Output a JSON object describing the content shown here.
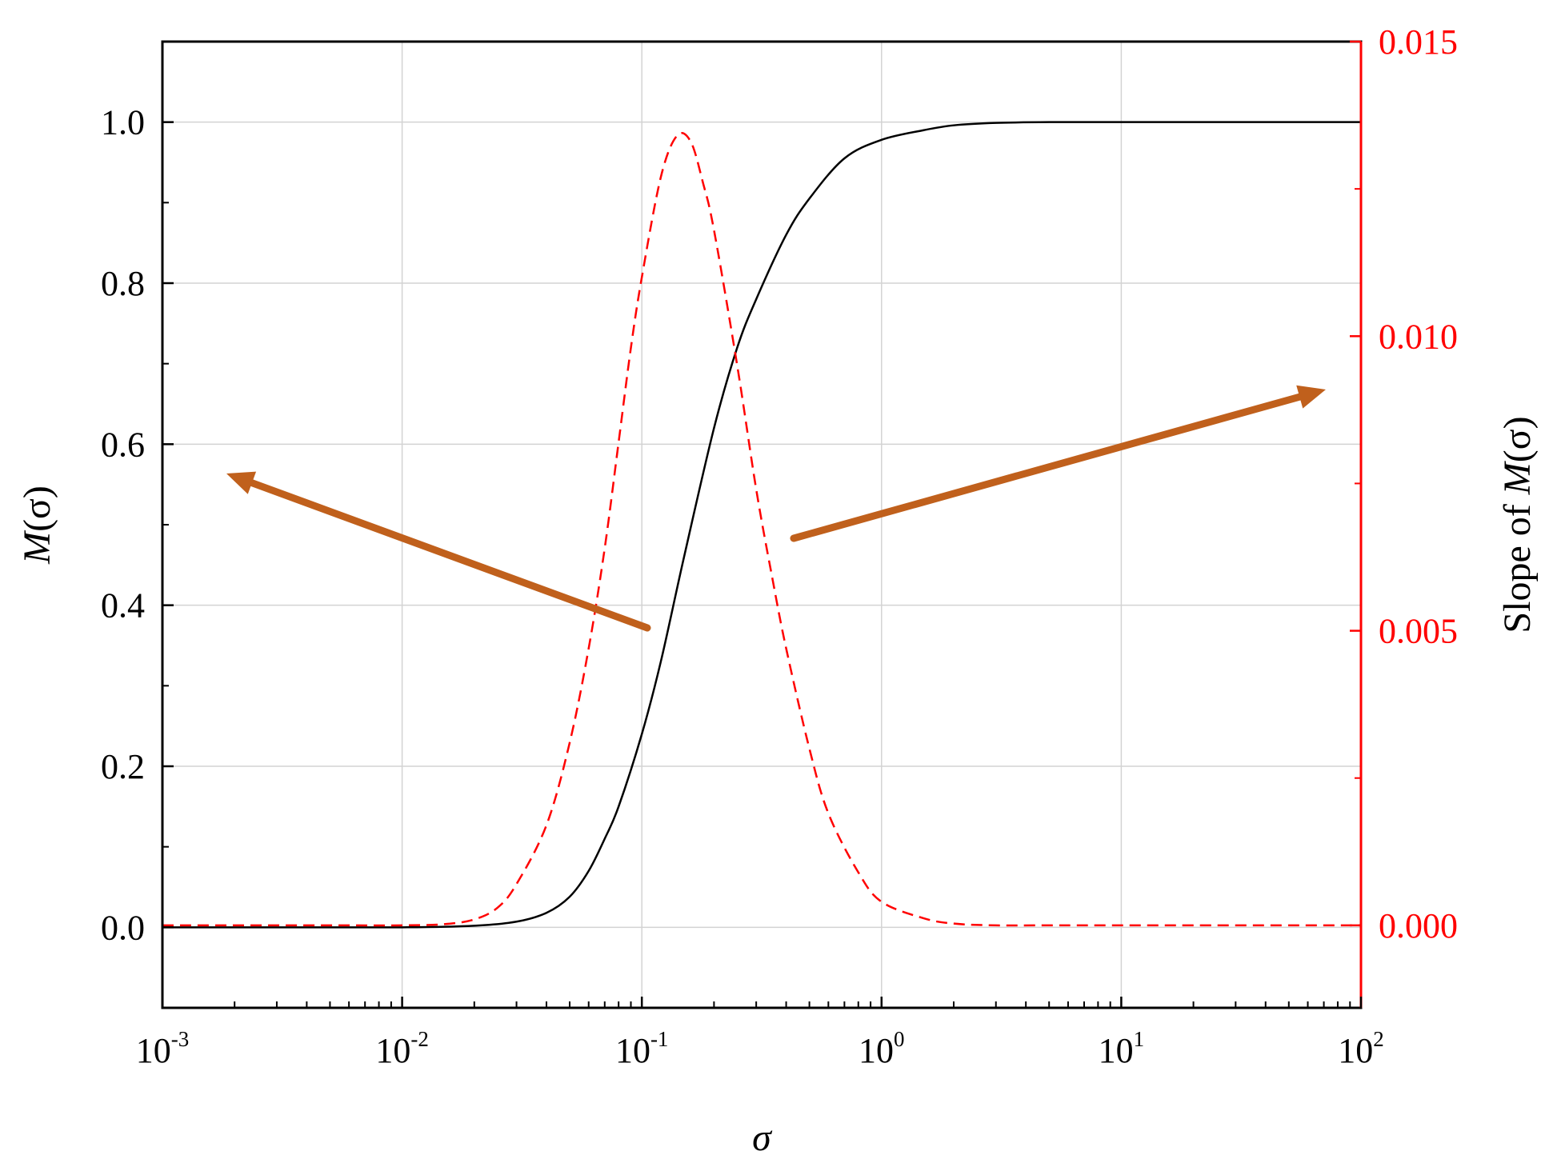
{
  "chart_data": {
    "type": "line",
    "title": "",
    "xlabel": "σ",
    "xscale": "log",
    "xlim": [
      0.001,
      100
    ],
    "x_ticks": [
      {
        "base": "10",
        "exp": "-3"
      },
      {
        "base": "10",
        "exp": "-2"
      },
      {
        "base": "10",
        "exp": "-1"
      },
      {
        "base": "10",
        "exp": "0"
      },
      {
        "base": "10",
        "exp": "1"
      },
      {
        "base": "10",
        "exp": "2"
      }
    ],
    "y_left": {
      "label_prefix": "M",
      "label_suffix": "(σ)",
      "ylim": [
        -0.1,
        1.1
      ],
      "ticks": [
        "0.0",
        "0.2",
        "0.4",
        "0.6",
        "0.8",
        "1.0"
      ],
      "color": "#000000"
    },
    "y_right": {
      "label_prefix": "Slope of ",
      "label_italic": "M",
      "label_suffix": "(σ)",
      "ylim": [
        -0.0014,
        0.015
      ],
      "ticks": [
        "0.000",
        "0.005",
        "0.010",
        "0.015"
      ],
      "color": "#ff0000"
    },
    "grid": true,
    "series": [
      {
        "axis": "left",
        "style": "solid",
        "color": "#000000",
        "x": [
          0.001,
          0.003,
          0.01,
          0.02,
          0.03,
          0.04,
          0.05,
          0.06,
          0.07,
          0.08,
          0.1,
          0.12,
          0.15,
          0.2,
          0.25,
          0.3,
          0.4,
          0.5,
          0.7,
          1,
          1.5,
          2,
          3,
          5,
          10,
          30,
          100
        ],
        "values": [
          0,
          0,
          0,
          0.002,
          0.007,
          0.018,
          0.038,
          0.07,
          0.11,
          0.15,
          0.24,
          0.33,
          0.46,
          0.62,
          0.72,
          0.78,
          0.86,
          0.905,
          0.955,
          0.978,
          0.99,
          0.996,
          0.999,
          1,
          1,
          1,
          1
        ]
      },
      {
        "axis": "right",
        "style": "dashed",
        "color": "#ff0000",
        "x": [
          0.001,
          0.005,
          0.01,
          0.015,
          0.02,
          0.025,
          0.03,
          0.04,
          0.05,
          0.06,
          0.07,
          0.08,
          0.09,
          0.1,
          0.12,
          0.14,
          0.16,
          0.18,
          0.2,
          0.25,
          0.3,
          0.35,
          0.4,
          0.5,
          0.6,
          0.8,
          1,
          1.5,
          2,
          3,
          5,
          10,
          100
        ],
        "values": [
          0,
          0,
          0,
          2e-05,
          0.0001,
          0.0003,
          0.0007,
          0.0017,
          0.0031,
          0.0047,
          0.0064,
          0.0082,
          0.0098,
          0.011,
          0.0127,
          0.0134,
          0.0133,
          0.0126,
          0.0118,
          0.0095,
          0.0074,
          0.0059,
          0.0047,
          0.003,
          0.0019,
          0.0009,
          0.0004,
          0.00012,
          3e-05,
          0,
          0,
          0,
          0
        ]
      }
    ],
    "annotations": [
      {
        "type": "arrow",
        "color": "#c0601c",
        "points_left": true
      },
      {
        "type": "arrow",
        "color": "#c0601c",
        "points_left": false
      }
    ]
  }
}
